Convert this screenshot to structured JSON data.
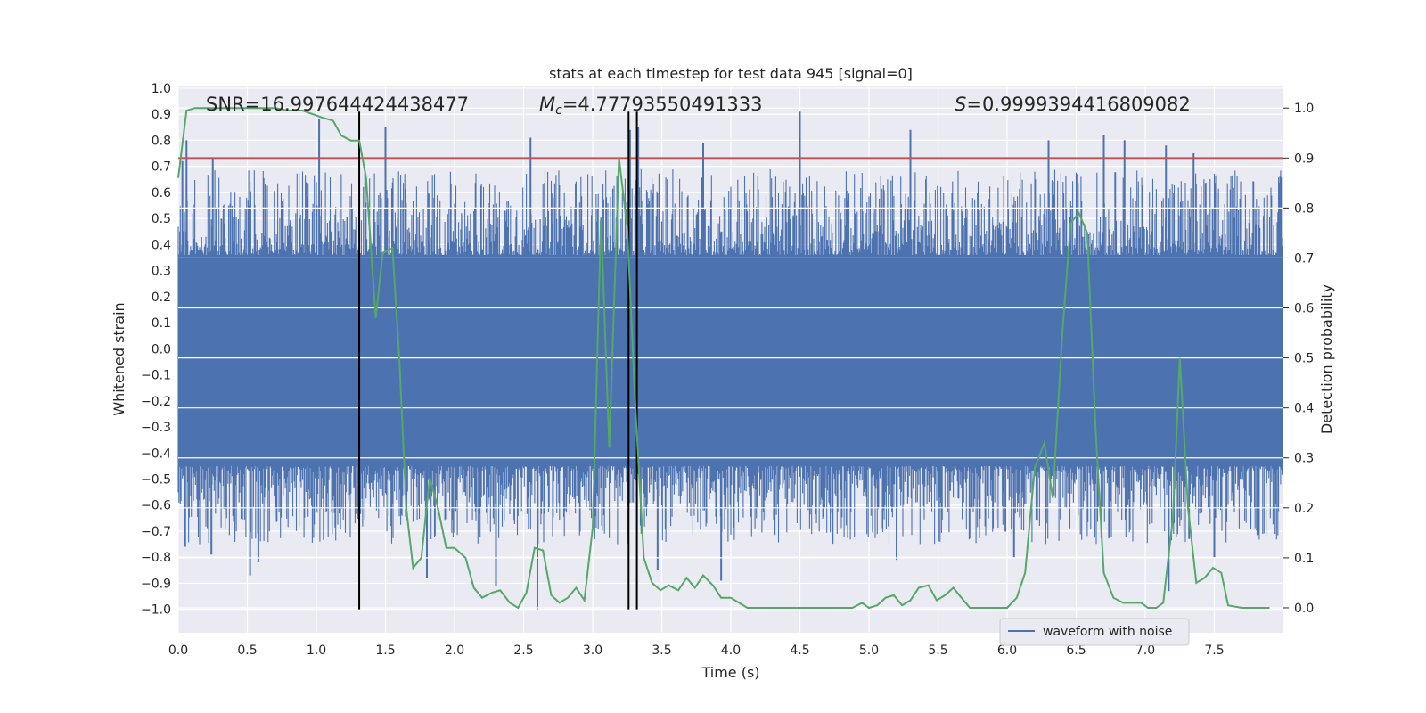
{
  "chart_data": {
    "type": "line",
    "title": "stats at each timestep for test data 945 [signal=0]",
    "xlabel": "Time (s)",
    "ylabel": "Whitened strain",
    "y2label": "Detection probability",
    "xlim": [
      0.0,
      8.0
    ],
    "ylim": [
      -1.09,
      1.01
    ],
    "y2lim": [
      -0.05,
      1.045
    ],
    "xticks": [
      0.0,
      0.5,
      1.0,
      1.5,
      2.0,
      2.5,
      3.0,
      3.5,
      4.0,
      4.5,
      5.0,
      5.5,
      6.0,
      6.5,
      7.0,
      7.5
    ],
    "xtick_labels": [
      "0.0",
      "0.5",
      "1.0",
      "1.5",
      "2.0",
      "2.5",
      "3.0",
      "3.5",
      "4.0",
      "4.5",
      "5.0",
      "5.5",
      "6.0",
      "6.5",
      "7.0",
      "7.5"
    ],
    "yticks": [
      1.0,
      0.9,
      0.8,
      0.7,
      0.6,
      0.5,
      0.4,
      0.3,
      0.2,
      0.1,
      0.0,
      -0.1,
      -0.2,
      -0.3,
      -0.4,
      -0.5,
      -0.6,
      -0.7,
      -0.8,
      -0.9,
      -1.0
    ],
    "ytick_labels": [
      "1.0",
      "0.9",
      "0.8",
      "0.7",
      "0.6",
      "0.5",
      "0.4",
      "0.3",
      "0.2",
      "0.1",
      "0.0",
      "−0.1",
      "−0.2",
      "−0.3",
      "−0.4",
      "−0.5",
      "−0.6",
      "−0.7",
      "−0.8",
      "−0.9",
      "−1.0"
    ],
    "y2ticks": [
      0.0,
      0.1,
      0.2,
      0.3,
      0.4,
      0.5,
      0.6,
      0.7,
      0.8,
      0.9,
      1.0
    ],
    "y2tick_labels": [
      "0.0",
      "0.1",
      "0.2",
      "0.3",
      "0.4",
      "0.5",
      "0.6",
      "0.7",
      "0.8",
      "0.9",
      "1.0"
    ],
    "grid": true,
    "legend_placement": "lower-right",
    "legend": [
      "waveform with noise"
    ],
    "annotations": {
      "snr": "SNR=16.997644424438477",
      "mc_symbol": "M",
      "mc_sub": "c",
      "mc_value": "=4.77793550491333",
      "s_symbol": "S",
      "s_value": "=0.9999394416809082"
    },
    "vlines_x": [
      1.31,
      3.26,
      3.32
    ],
    "threshold_y2": 0.9,
    "series": [
      {
        "name": "waveform with noise",
        "color": "#4c72b0",
        "axis": "left",
        "band_low": -0.43,
        "band_high": 0.34,
        "spikes": [
          {
            "x": 0.03,
            "y": 0.72
          },
          {
            "x": 0.06,
            "y": 0.8
          },
          {
            "x": 0.25,
            "y": 0.73
          },
          {
            "x": 1.02,
            "y": 0.88
          },
          {
            "x": 1.5,
            "y": 0.85
          },
          {
            "x": 2.55,
            "y": 0.81
          },
          {
            "x": 3.27,
            "y": 0.84
          },
          {
            "x": 3.33,
            "y": 0.85
          },
          {
            "x": 3.8,
            "y": 0.79
          },
          {
            "x": 4.5,
            "y": 0.91
          },
          {
            "x": 5.3,
            "y": 0.84
          },
          {
            "x": 6.3,
            "y": 0.8
          },
          {
            "x": 6.7,
            "y": 0.82
          },
          {
            "x": 6.85,
            "y": 0.8
          },
          {
            "x": 7.15,
            "y": 0.78
          },
          {
            "x": 7.35,
            "y": 0.75
          },
          {
            "x": 0.05,
            "y": -0.76
          },
          {
            "x": 0.24,
            "y": -0.79
          },
          {
            "x": 0.52,
            "y": -0.87
          },
          {
            "x": 0.58,
            "y": -0.82
          },
          {
            "x": 1.8,
            "y": -0.88
          },
          {
            "x": 2.3,
            "y": -0.91
          },
          {
            "x": 2.6,
            "y": -1.0
          },
          {
            "x": 3.47,
            "y": -0.85
          },
          {
            "x": 3.93,
            "y": -0.89
          },
          {
            "x": 5.2,
            "y": -0.81
          },
          {
            "x": 6.05,
            "y": -0.8
          },
          {
            "x": 7.17,
            "y": -0.93
          },
          {
            "x": 7.5,
            "y": -0.8
          }
        ]
      },
      {
        "name": "detection probability",
        "color": "#55a868",
        "axis": "right",
        "x": [
          0.0,
          0.06,
          0.12,
          0.2,
          0.3,
          0.4,
          0.5,
          0.6,
          0.7,
          0.8,
          0.9,
          1.0,
          1.05,
          1.12,
          1.18,
          1.25,
          1.31,
          1.36,
          1.43,
          1.48,
          1.55,
          1.6,
          1.65,
          1.7,
          1.76,
          1.82,
          1.88,
          1.94,
          2.0,
          2.08,
          2.14,
          2.2,
          2.27,
          2.33,
          2.4,
          2.46,
          2.52,
          2.58,
          2.64,
          2.7,
          2.76,
          2.82,
          2.88,
          2.94,
          3.0,
          3.06,
          3.12,
          3.19,
          3.25,
          3.31,
          3.37,
          3.43,
          3.49,
          3.55,
          3.62,
          3.68,
          3.74,
          3.8,
          3.87,
          3.93,
          4.0,
          4.06,
          4.12,
          4.18,
          4.25,
          4.31,
          4.4,
          4.5,
          4.6,
          4.7,
          4.8,
          4.88,
          4.95,
          5.0,
          5.06,
          5.12,
          5.18,
          5.24,
          5.3,
          5.36,
          5.43,
          5.49,
          5.55,
          5.61,
          5.67,
          5.73,
          5.8,
          5.9,
          6.0,
          6.07,
          6.13,
          6.2,
          6.27,
          6.33,
          6.4,
          6.46,
          6.52,
          6.58,
          6.64,
          6.7,
          6.77,
          6.84,
          6.9,
          6.97,
          7.02,
          7.08,
          7.13,
          7.2,
          7.25,
          7.31,
          7.37,
          7.43,
          7.49,
          7.55,
          7.6,
          7.7,
          7.8,
          7.9
        ],
        "y": [
          0.86,
          0.995,
          1.0,
          1.0,
          1.0,
          1.0,
          1.0,
          1.0,
          1.0,
          0.995,
          0.995,
          0.985,
          0.98,
          0.975,
          0.945,
          0.935,
          0.935,
          0.86,
          0.58,
          0.71,
          0.72,
          0.5,
          0.2,
          0.08,
          0.1,
          0.26,
          0.2,
          0.12,
          0.12,
          0.1,
          0.04,
          0.02,
          0.03,
          0.035,
          0.01,
          0.0,
          0.03,
          0.12,
          0.115,
          0.025,
          0.01,
          0.02,
          0.04,
          0.015,
          0.16,
          0.78,
          0.32,
          0.9,
          0.76,
          0.4,
          0.1,
          0.05,
          0.035,
          0.045,
          0.035,
          0.06,
          0.04,
          0.065,
          0.045,
          0.02,
          0.02,
          0.01,
          0.0,
          0.0,
          0.0,
          0.0,
          0.0,
          0.0,
          0.0,
          0.0,
          0.0,
          0.0,
          0.01,
          0.0,
          0.005,
          0.02,
          0.025,
          0.005,
          0.015,
          0.04,
          0.045,
          0.015,
          0.025,
          0.04,
          0.02,
          0.0,
          0.0,
          0.0,
          0.0,
          0.02,
          0.07,
          0.28,
          0.33,
          0.22,
          0.55,
          0.77,
          0.79,
          0.75,
          0.36,
          0.07,
          0.02,
          0.01,
          0.01,
          0.01,
          0.0,
          0.0,
          0.01,
          0.18,
          0.5,
          0.2,
          0.05,
          0.06,
          0.08,
          0.07,
          0.005,
          0.0,
          0.0,
          0.0
        ]
      }
    ]
  }
}
